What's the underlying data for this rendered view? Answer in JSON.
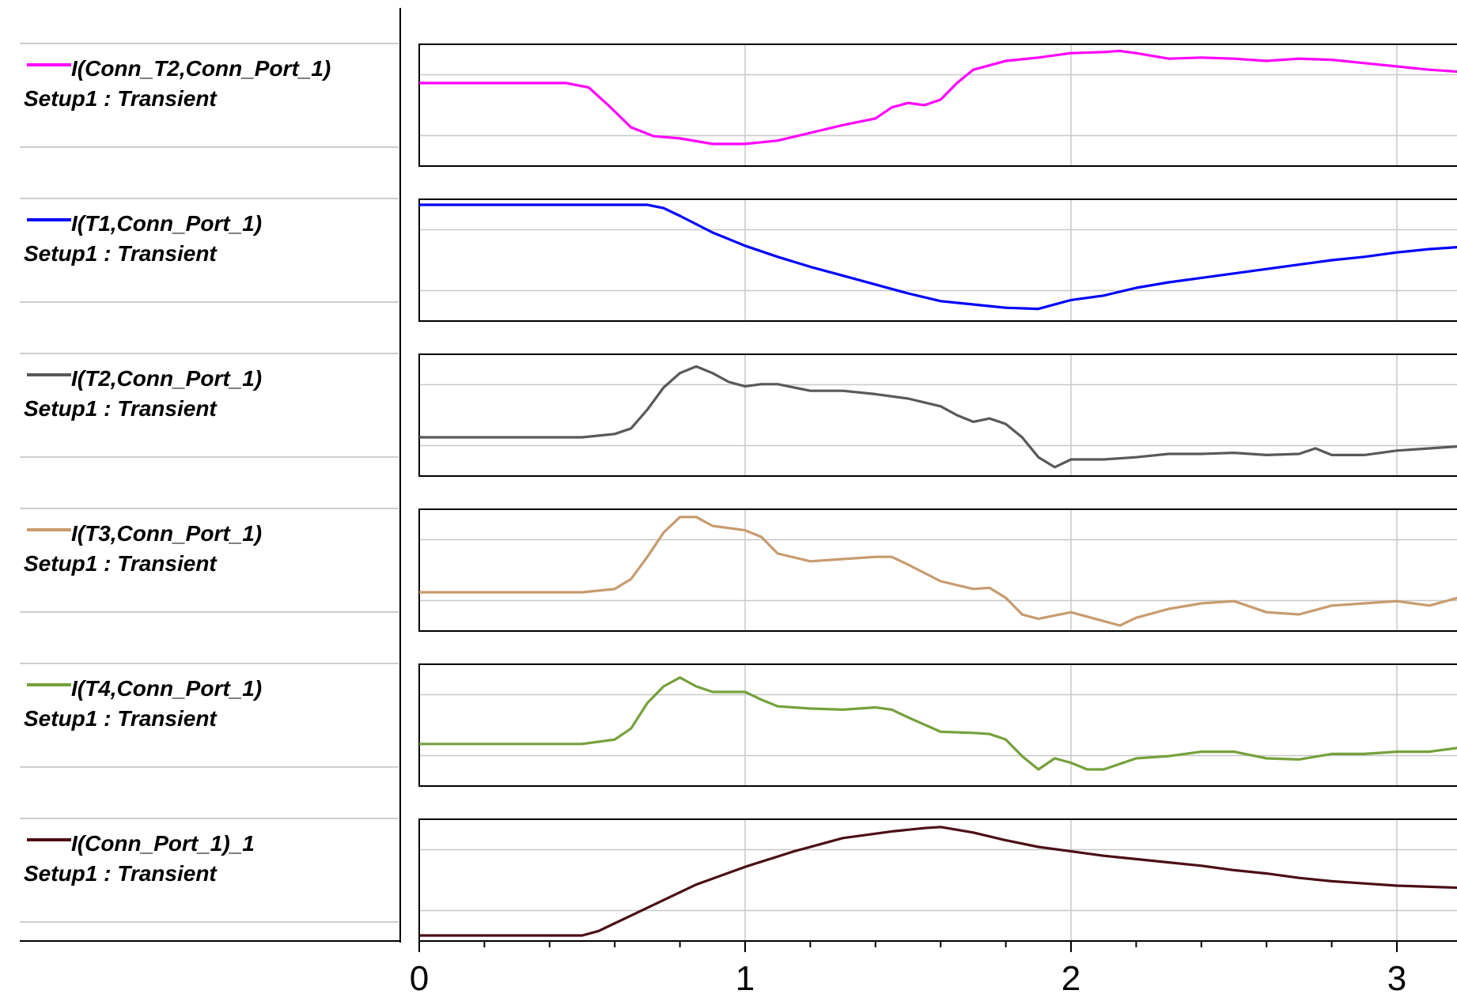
{
  "chart_data": {
    "type": "line",
    "stacked_panels": true,
    "x_ticks": [
      "0",
      "1",
      "2",
      "3"
    ],
    "xlim": [
      0,
      3.2
    ],
    "grid": true,
    "legend_position": "left",
    "series": [
      {
        "name": "I(Conn_T2,Conn_Port_1)",
        "sub": "Setup1 : Transient",
        "color": "#ff00ff",
        "ylim": [
          -0.05,
          1.05
        ],
        "points": [
          [
            0,
            0.7
          ],
          [
            0.45,
            0.7
          ],
          [
            0.52,
            0.66
          ],
          [
            0.58,
            0.5
          ],
          [
            0.65,
            0.3
          ],
          [
            0.72,
            0.22
          ],
          [
            0.8,
            0.2
          ],
          [
            0.9,
            0.15
          ],
          [
            1.0,
            0.15
          ],
          [
            1.1,
            0.18
          ],
          [
            1.2,
            0.25
          ],
          [
            1.3,
            0.32
          ],
          [
            1.4,
            0.38
          ],
          [
            1.45,
            0.48
          ],
          [
            1.5,
            0.52
          ],
          [
            1.55,
            0.5
          ],
          [
            1.6,
            0.55
          ],
          [
            1.65,
            0.7
          ],
          [
            1.7,
            0.82
          ],
          [
            1.8,
            0.9
          ],
          [
            1.9,
            0.93
          ],
          [
            2.0,
            0.97
          ],
          [
            2.1,
            0.98
          ],
          [
            2.15,
            0.99
          ],
          [
            2.2,
            0.97
          ],
          [
            2.3,
            0.92
          ],
          [
            2.4,
            0.93
          ],
          [
            2.5,
            0.92
          ],
          [
            2.6,
            0.9
          ],
          [
            2.7,
            0.92
          ],
          [
            2.8,
            0.91
          ],
          [
            2.9,
            0.88
          ],
          [
            3.0,
            0.85
          ],
          [
            3.1,
            0.82
          ],
          [
            3.2,
            0.8
          ]
        ]
      },
      {
        "name": "I(T1,Conn_Port_1)",
        "sub": "Setup1 : Transient",
        "color": "#0000ff",
        "ylim": [
          -0.05,
          1.05
        ],
        "points": [
          [
            0,
            1.0
          ],
          [
            0.5,
            1.0
          ],
          [
            0.7,
            1.0
          ],
          [
            0.75,
            0.97
          ],
          [
            0.8,
            0.9
          ],
          [
            0.9,
            0.75
          ],
          [
            1.0,
            0.63
          ],
          [
            1.1,
            0.53
          ],
          [
            1.2,
            0.44
          ],
          [
            1.3,
            0.36
          ],
          [
            1.4,
            0.28
          ],
          [
            1.5,
            0.2
          ],
          [
            1.6,
            0.13
          ],
          [
            1.7,
            0.1
          ],
          [
            1.8,
            0.07
          ],
          [
            1.9,
            0.06
          ],
          [
            2.0,
            0.14
          ],
          [
            2.1,
            0.18
          ],
          [
            2.2,
            0.25
          ],
          [
            2.3,
            0.3
          ],
          [
            2.4,
            0.34
          ],
          [
            2.5,
            0.38
          ],
          [
            2.6,
            0.42
          ],
          [
            2.7,
            0.46
          ],
          [
            2.8,
            0.5
          ],
          [
            2.9,
            0.53
          ],
          [
            3.0,
            0.57
          ],
          [
            3.1,
            0.6
          ],
          [
            3.2,
            0.62
          ]
        ]
      },
      {
        "name": "I(T2,Conn_Port_1)",
        "sub": "Setup1 : Transient",
        "color": "#595959",
        "ylim": [
          -0.05,
          1.05
        ],
        "points": [
          [
            0,
            0.3
          ],
          [
            0.5,
            0.3
          ],
          [
            0.6,
            0.33
          ],
          [
            0.65,
            0.38
          ],
          [
            0.7,
            0.55
          ],
          [
            0.75,
            0.75
          ],
          [
            0.8,
            0.88
          ],
          [
            0.85,
            0.94
          ],
          [
            0.9,
            0.88
          ],
          [
            0.95,
            0.8
          ],
          [
            1.0,
            0.76
          ],
          [
            1.05,
            0.78
          ],
          [
            1.1,
            0.78
          ],
          [
            1.2,
            0.72
          ],
          [
            1.3,
            0.72
          ],
          [
            1.4,
            0.69
          ],
          [
            1.5,
            0.65
          ],
          [
            1.6,
            0.58
          ],
          [
            1.65,
            0.5
          ],
          [
            1.7,
            0.44
          ],
          [
            1.75,
            0.47
          ],
          [
            1.8,
            0.42
          ],
          [
            1.85,
            0.3
          ],
          [
            1.9,
            0.12
          ],
          [
            1.95,
            0.03
          ],
          [
            2.0,
            0.1
          ],
          [
            2.1,
            0.1
          ],
          [
            2.2,
            0.12
          ],
          [
            2.3,
            0.15
          ],
          [
            2.4,
            0.15
          ],
          [
            2.5,
            0.16
          ],
          [
            2.6,
            0.14
          ],
          [
            2.7,
            0.15
          ],
          [
            2.75,
            0.2
          ],
          [
            2.8,
            0.14
          ],
          [
            2.9,
            0.14
          ],
          [
            3.0,
            0.18
          ],
          [
            3.1,
            0.2
          ],
          [
            3.2,
            0.22
          ]
        ]
      },
      {
        "name": "I(T3,Conn_Port_1)",
        "sub": "Setup1 : Transient",
        "color": "#c89b6e",
        "ylim": [
          -0.05,
          1.05
        ],
        "points": [
          [
            0,
            0.3
          ],
          [
            0.5,
            0.3
          ],
          [
            0.6,
            0.33
          ],
          [
            0.65,
            0.42
          ],
          [
            0.7,
            0.62
          ],
          [
            0.75,
            0.84
          ],
          [
            0.8,
            0.98
          ],
          [
            0.85,
            0.98
          ],
          [
            0.9,
            0.9
          ],
          [
            1.0,
            0.86
          ],
          [
            1.05,
            0.8
          ],
          [
            1.1,
            0.65
          ],
          [
            1.2,
            0.58
          ],
          [
            1.3,
            0.6
          ],
          [
            1.4,
            0.62
          ],
          [
            1.45,
            0.62
          ],
          [
            1.5,
            0.55
          ],
          [
            1.6,
            0.4
          ],
          [
            1.7,
            0.33
          ],
          [
            1.75,
            0.34
          ],
          [
            1.8,
            0.25
          ],
          [
            1.85,
            0.1
          ],
          [
            1.9,
            0.06
          ],
          [
            2.0,
            0.12
          ],
          [
            2.1,
            0.04
          ],
          [
            2.15,
            0.0
          ],
          [
            2.2,
            0.07
          ],
          [
            2.3,
            0.15
          ],
          [
            2.4,
            0.2
          ],
          [
            2.5,
            0.22
          ],
          [
            2.6,
            0.12
          ],
          [
            2.7,
            0.1
          ],
          [
            2.8,
            0.18
          ],
          [
            2.9,
            0.2
          ],
          [
            3.0,
            0.22
          ],
          [
            3.1,
            0.18
          ],
          [
            3.2,
            0.26
          ]
        ]
      },
      {
        "name": "I(T4,Conn_Port_1)",
        "sub": "Setup1 : Transient",
        "color": "#76a03c",
        "ylim": [
          -0.05,
          1.05
        ],
        "points": [
          [
            0,
            0.33
          ],
          [
            0.5,
            0.33
          ],
          [
            0.6,
            0.37
          ],
          [
            0.65,
            0.47
          ],
          [
            0.7,
            0.7
          ],
          [
            0.75,
            0.85
          ],
          [
            0.8,
            0.93
          ],
          [
            0.85,
            0.85
          ],
          [
            0.9,
            0.8
          ],
          [
            1.0,
            0.8
          ],
          [
            1.05,
            0.73
          ],
          [
            1.1,
            0.67
          ],
          [
            1.2,
            0.65
          ],
          [
            1.3,
            0.64
          ],
          [
            1.4,
            0.66
          ],
          [
            1.45,
            0.64
          ],
          [
            1.5,
            0.57
          ],
          [
            1.6,
            0.44
          ],
          [
            1.7,
            0.43
          ],
          [
            1.75,
            0.42
          ],
          [
            1.8,
            0.37
          ],
          [
            1.85,
            0.22
          ],
          [
            1.9,
            0.1
          ],
          [
            1.95,
            0.2
          ],
          [
            2.0,
            0.16
          ],
          [
            2.05,
            0.1
          ],
          [
            2.1,
            0.1
          ],
          [
            2.2,
            0.2
          ],
          [
            2.3,
            0.22
          ],
          [
            2.4,
            0.26
          ],
          [
            2.5,
            0.26
          ],
          [
            2.6,
            0.2
          ],
          [
            2.7,
            0.19
          ],
          [
            2.8,
            0.24
          ],
          [
            2.9,
            0.24
          ],
          [
            3.0,
            0.26
          ],
          [
            3.1,
            0.26
          ],
          [
            3.2,
            0.3
          ]
        ]
      },
      {
        "name": "I(Conn_Port_1)_1",
        "sub": "Setup1 : Transient",
        "color": "#4a0f14",
        "ylim": [
          -0.05,
          1.05
        ],
        "points": [
          [
            0,
            0.0
          ],
          [
            0.45,
            0.0
          ],
          [
            0.5,
            0.0
          ],
          [
            0.55,
            0.04
          ],
          [
            0.65,
            0.18
          ],
          [
            0.75,
            0.32
          ],
          [
            0.85,
            0.46
          ],
          [
            1.0,
            0.62
          ],
          [
            1.15,
            0.76
          ],
          [
            1.3,
            0.88
          ],
          [
            1.45,
            0.94
          ],
          [
            1.55,
            0.97
          ],
          [
            1.6,
            0.98
          ],
          [
            1.7,
            0.93
          ],
          [
            1.8,
            0.86
          ],
          [
            1.9,
            0.8
          ],
          [
            2.0,
            0.76
          ],
          [
            2.1,
            0.72
          ],
          [
            2.2,
            0.69
          ],
          [
            2.3,
            0.66
          ],
          [
            2.4,
            0.63
          ],
          [
            2.5,
            0.59
          ],
          [
            2.6,
            0.56
          ],
          [
            2.7,
            0.52
          ],
          [
            2.8,
            0.49
          ],
          [
            2.9,
            0.47
          ],
          [
            3.0,
            0.45
          ],
          [
            3.1,
            0.44
          ],
          [
            3.2,
            0.43
          ]
        ]
      }
    ]
  }
}
